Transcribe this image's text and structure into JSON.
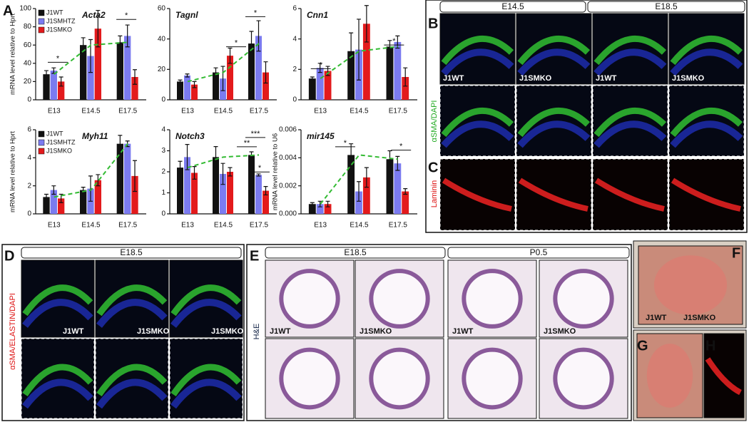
{
  "chart_data": [
    {
      "type": "bar",
      "title": "Acta2",
      "ylabel": "mRNA level relative to Hprt",
      "categories": [
        "E13",
        "E14.5",
        "E17.5"
      ],
      "series": [
        {
          "name": "J1WT",
          "color": "#111111",
          "values": [
            28,
            60,
            63
          ],
          "errors": [
            4,
            8,
            7
          ]
        },
        {
          "name": "J1SMHTZ",
          "color": "#7b7bf0",
          "values": [
            32,
            48,
            70
          ],
          "errors": [
            3,
            18,
            12
          ]
        },
        {
          "name": "J1SMKO",
          "color": "#e31a1c",
          "values": [
            20,
            78,
            25
          ],
          "errors": [
            5,
            20,
            8
          ]
        }
      ],
      "ylim": [
        0,
        100
      ],
      "yticks": [
        0,
        20,
        40,
        60,
        80,
        100
      ],
      "annotations": [
        "*",
        "*"
      ]
    },
    {
      "type": "bar",
      "title": "Tagnl",
      "categories": [
        "E13",
        "E14.5",
        "E17.5"
      ],
      "series": [
        {
          "name": "J1WT",
          "color": "#111111",
          "values": [
            12,
            18,
            37
          ],
          "errors": [
            1,
            3,
            8
          ]
        },
        {
          "name": "J1SMHTZ",
          "color": "#7b7bf0",
          "values": [
            16,
            14,
            42
          ],
          "errors": [
            1,
            8,
            10
          ]
        },
        {
          "name": "J1SMKO",
          "color": "#e31a1c",
          "values": [
            10,
            29,
            18
          ],
          "errors": [
            2,
            5,
            7
          ]
        }
      ],
      "ylim": [
        0,
        60
      ],
      "yticks": [
        0,
        20,
        40,
        60
      ],
      "annotations": [
        "*",
        "*"
      ]
    },
    {
      "type": "bar",
      "title": "Cnn1",
      "categories": [
        "E13",
        "E14.5",
        "E17.5"
      ],
      "series": [
        {
          "name": "J1WT",
          "color": "#111111",
          "values": [
            1.4,
            3.2,
            3.5
          ],
          "errors": [
            0.1,
            1.2,
            0.4
          ]
        },
        {
          "name": "J1SMHTZ",
          "color": "#7b7bf0",
          "values": [
            2.1,
            3.3,
            3.8
          ],
          "errors": [
            0.3,
            2.0,
            0.4
          ]
        },
        {
          "name": "J1SMKO",
          "color": "#e31a1c",
          "values": [
            1.9,
            5.0,
            1.5
          ],
          "errors": [
            0.3,
            1.2,
            0.6
          ]
        }
      ],
      "ylim": [
        0,
        6
      ],
      "yticks": [
        0,
        2,
        4,
        6
      ],
      "annotations": [
        "*",
        "*"
      ]
    },
    {
      "type": "bar",
      "title": "Myh11",
      "ylabel": "mRNA level relative to Hprt",
      "categories": [
        "E13",
        "E14.5",
        "E17.5"
      ],
      "series": [
        {
          "name": "J1WT",
          "color": "#111111",
          "values": [
            1.2,
            1.7,
            5.0
          ],
          "errors": [
            0.2,
            0.2,
            0.6
          ]
        },
        {
          "name": "J1SMHTZ",
          "color": "#7b7bf0",
          "values": [
            1.7,
            1.8,
            5.0
          ],
          "errors": [
            0.3,
            0.9,
            0.2
          ]
        },
        {
          "name": "J1SMKO",
          "color": "#e31a1c",
          "values": [
            1.1,
            2.4,
            2.7
          ],
          "errors": [
            0.3,
            0.4,
            1.1
          ]
        }
      ],
      "ylim": [
        0,
        6
      ],
      "yticks": [
        0,
        2,
        4,
        6
      ],
      "annotations": []
    },
    {
      "type": "bar",
      "title": "Notch3",
      "categories": [
        "E13",
        "E14.5",
        "E17.5"
      ],
      "series": [
        {
          "name": "J1WT",
          "color": "#111111",
          "values": [
            2.2,
            2.7,
            2.8
          ],
          "errors": [
            0.3,
            0.5,
            0.15
          ]
        },
        {
          "name": "J1SMHTZ",
          "color": "#7b7bf0",
          "values": [
            2.7,
            1.9,
            1.85
          ],
          "errors": [
            0.6,
            0.5,
            0.05
          ]
        },
        {
          "name": "J1SMKO",
          "color": "#e31a1c",
          "values": [
            1.95,
            2.0,
            1.1
          ],
          "errors": [
            0.3,
            0.2,
            0.2
          ]
        }
      ],
      "ylim": [
        0,
        4
      ],
      "yticks": [
        0,
        1,
        2,
        3,
        4
      ],
      "annotations": [
        "***",
        "**",
        "*"
      ]
    },
    {
      "type": "bar",
      "title": "mir145",
      "ylabel": "mRNA level relative to U6",
      "categories": [
        "E13",
        "E14.5",
        "E17.5"
      ],
      "series": [
        {
          "name": "J1WT",
          "color": "#111111",
          "values": [
            0.0007,
            0.0042,
            0.0039
          ],
          "errors": [
            0.0001,
            0.0008,
            0.0006
          ]
        },
        {
          "name": "J1SMHTZ",
          "color": "#7b7bf0",
          "values": [
            0.0007,
            0.0016,
            0.0036
          ],
          "errors": [
            0.0002,
            0.0007,
            0.0005
          ]
        },
        {
          "name": "J1SMKO",
          "color": "#e31a1c",
          "values": [
            0.0007,
            0.0026,
            0.0016
          ],
          "errors": [
            0.0002,
            0.0007,
            0.0002
          ]
        }
      ],
      "ylim": [
        0,
        0.006
      ],
      "yticks": [
        {
          "value": 0,
          "label": "0.000"
        },
        {
          "value": 0.002,
          "label": "0.002"
        },
        {
          "value": 0.004,
          "label": "0.004"
        },
        {
          "value": 0.006,
          "label": "0.006"
        }
      ],
      "annotations": [
        "*",
        "*"
      ]
    }
  ],
  "panel_labels": [
    "A",
    "B",
    "C",
    "D",
    "E",
    "F",
    "G",
    "H"
  ],
  "panel_b": {
    "headers": [
      "E14.5",
      "E18.5"
    ],
    "image_labels": [
      "J1WT",
      "J1SMKO",
      "J1WT",
      "J1SMKO"
    ],
    "stain_top": "αSMA/DAPI",
    "stain_bottom": "Laminin"
  },
  "panel_d": {
    "header": "E18.5",
    "image_labels": [
      "J1WT",
      "J1SMKO",
      "J1SMKO"
    ],
    "stain": "αSMA/ELASTIN/DAPI"
  },
  "panel_e": {
    "headers": [
      "E18.5",
      "P0.5"
    ],
    "image_labels": [
      "J1WT",
      "J1SMKO",
      "J1WT",
      "J1SMKO"
    ],
    "stain": "H&E"
  },
  "panel_f": {
    "labels": [
      "J1WT",
      "J1SMKO"
    ]
  }
}
